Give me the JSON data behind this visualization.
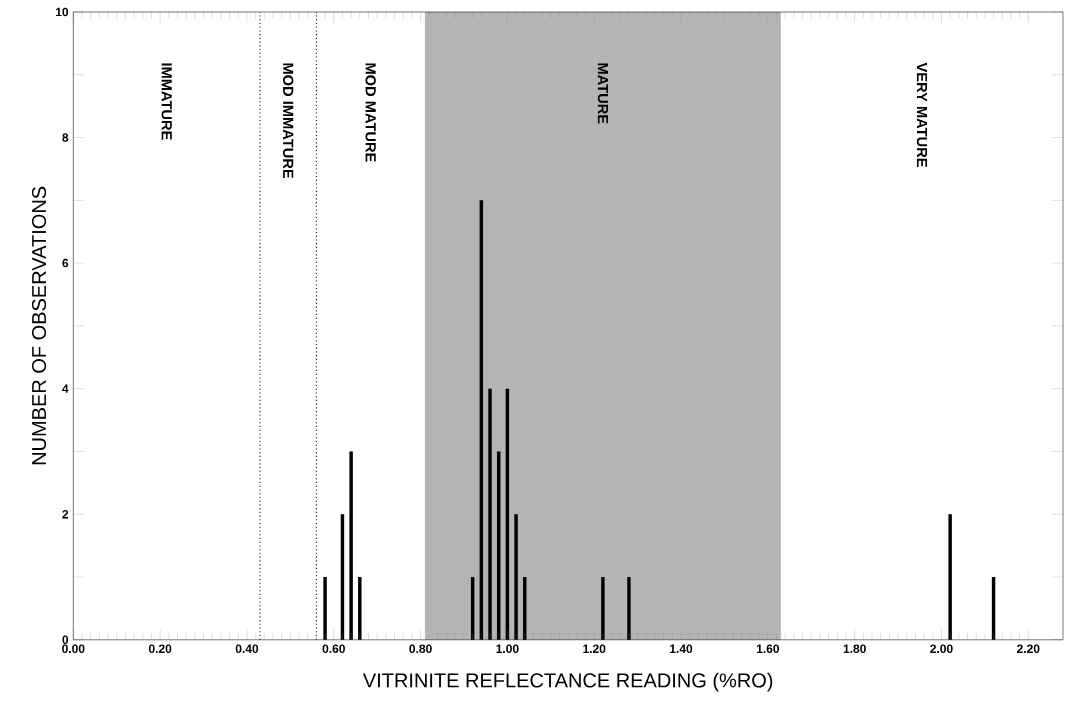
{
  "chart_data": {
    "type": "bar",
    "xlabel": "VITRINITE REFLECTANCE READING (%RO)",
    "ylabel": "NUMBER OF OBSERVATIONS",
    "x": [
      0.58,
      0.62,
      0.64,
      0.66,
      0.92,
      0.94,
      0.96,
      0.98,
      1.0,
      1.02,
      1.04,
      1.22,
      1.28,
      2.02,
      2.12
    ],
    "values": [
      1,
      2,
      3,
      1,
      1,
      7,
      4,
      3,
      4,
      2,
      1,
      1,
      1,
      2,
      1
    ],
    "color": "#000000",
    "xlim": [
      0,
      2.28
    ],
    "xticks": [
      {
        "value": 0,
        "label": "0.00"
      },
      {
        "value": 0.2,
        "label": "0.20"
      },
      {
        "value": 0.4,
        "label": "0.40"
      },
      {
        "value": 0.6,
        "label": "0.60"
      },
      {
        "value": 0.8,
        "label": "0.80"
      },
      {
        "value": 1.0,
        "label": "1.00"
      },
      {
        "value": 1.2,
        "label": "1.20"
      },
      {
        "value": 1.4,
        "label": "1.40"
      },
      {
        "value": 1.6,
        "label": "1.60"
      },
      {
        "value": 1.8,
        "label": "1.80"
      },
      {
        "value": 2.0,
        "label": "2.00"
      },
      {
        "value": 2.2,
        "label": "2.20"
      }
    ],
    "ylim": [
      0,
      10
    ],
    "yticks": [
      0,
      {
        "value": 1,
        "label": null
      },
      2,
      {
        "value": 3,
        "label": null
      },
      4,
      {
        "value": 5,
        "label": null
      },
      6,
      {
        "value": 7,
        "label": null
      },
      8,
      {
        "value": 9,
        "label": null
      },
      10
    ],
    "ref_lines": [
      {
        "axis": "x",
        "value": 0.43,
        "line_style": "dotted",
        "color": "#000000"
      },
      {
        "axis": "x",
        "value": 0.56,
        "line_style": "dotted",
        "color": "#000000"
      }
    ],
    "bands": [
      {
        "axis": "x",
        "from": 0.81,
        "to": 1.63,
        "color": "#b4b4b4"
      }
    ],
    "annotations": [
      "IMMATURE",
      "MOD IMMATURE",
      "MOD MATURE",
      "MATURE",
      "VERY MATURE"
    ]
  }
}
